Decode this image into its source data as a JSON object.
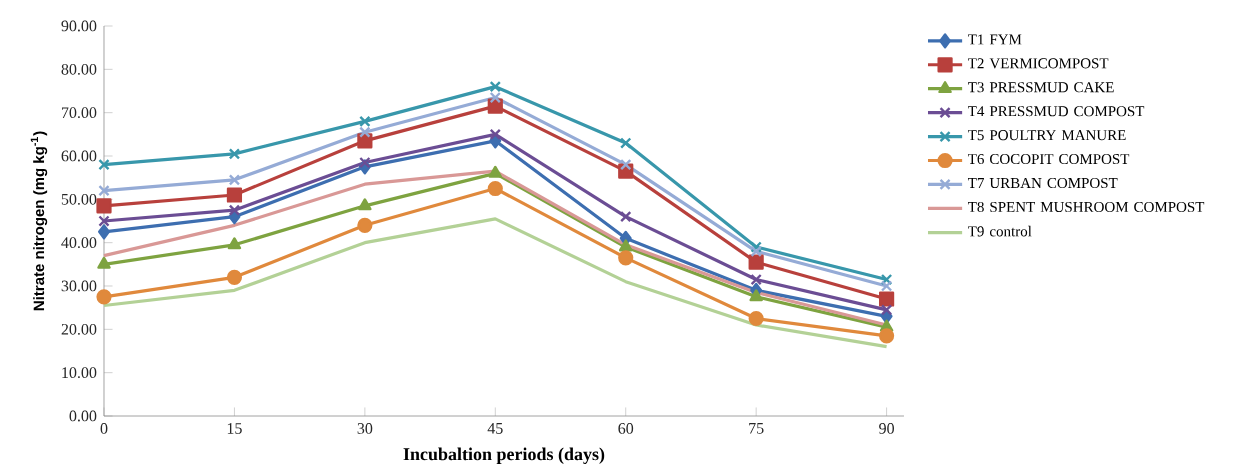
{
  "chart_data": {
    "type": "line",
    "xlabel": "Incubaltion periods (days)",
    "ylabel": "Nitrate nitrogen (mg kg$^{-1}$)",
    "x": [
      0,
      15,
      30,
      45,
      60,
      75,
      90
    ],
    "xlim": [
      0,
      92
    ],
    "xticks": [
      0,
      15,
      30,
      45,
      60,
      75,
      90
    ],
    "ylim": [
      0,
      90
    ],
    "yticks": [
      {
        "value": 0,
        "label": "0.00"
      },
      {
        "value": 10,
        "label": "10.00"
      },
      {
        "value": 20,
        "label": "20.00"
      },
      {
        "value": 30,
        "label": "30.00"
      },
      {
        "value": 40,
        "label": "40.00"
      },
      {
        "value": 50,
        "label": "50.00"
      },
      {
        "value": 60,
        "label": "60.00"
      },
      {
        "value": 70,
        "label": "70.00"
      },
      {
        "value": 80,
        "label": "80.00"
      },
      {
        "value": 90,
        "label": "90.00"
      }
    ],
    "grid": false,
    "legend": "right",
    "series": [
      {
        "name": "T1 FYM",
        "color": "#3d6eb0",
        "marker": "diamond",
        "values": [
          42.5,
          46,
          57.5,
          63.5,
          41,
          29,
          23
        ]
      },
      {
        "name": "T2 VERMICOMPOST",
        "color": "#b8403c",
        "marker": "square",
        "values": [
          48.5,
          51,
          63.5,
          71.5,
          56.5,
          35.5,
          27
        ]
      },
      {
        "name": "T3 PRESSMUD CAKE",
        "color": "#7ea340",
        "marker": "triangle",
        "values": [
          35,
          39.5,
          48.5,
          56,
          39,
          27.5,
          20.5
        ]
      },
      {
        "name": "T4 PRESSMUD COMPOST",
        "color": "#6b4d94",
        "marker": "cross",
        "values": [
          45,
          47.5,
          58.5,
          65,
          46,
          31.5,
          24.5
        ]
      },
      {
        "name": "T5 POULTRY MANURE",
        "color": "#3897ab",
        "marker": "cross",
        "values": [
          58,
          60.5,
          68,
          76,
          63,
          39,
          31.5
        ]
      },
      {
        "name": "T6 COCOPIT COMPOST",
        "color": "#e0893c",
        "marker": "circle",
        "values": [
          27.5,
          32,
          44,
          52.5,
          36.5,
          22.5,
          18.5
        ]
      },
      {
        "name": "T7 URBAN COMPOST",
        "color": "#95abd6",
        "marker": "cross",
        "values": [
          52,
          54.5,
          65.5,
          73.5,
          58,
          38,
          30
        ]
      },
      {
        "name": "T8 SPENT MUSHROOM COMPOST",
        "color": "#d99896",
        "marker": "none",
        "values": [
          37,
          44,
          53.5,
          56.5,
          39.5,
          28.5,
          21
        ]
      },
      {
        "name": "T9 control",
        "color": "#b3d196",
        "marker": "none",
        "values": [
          25.5,
          29,
          40,
          45.5,
          31,
          21,
          16
        ]
      }
    ]
  }
}
